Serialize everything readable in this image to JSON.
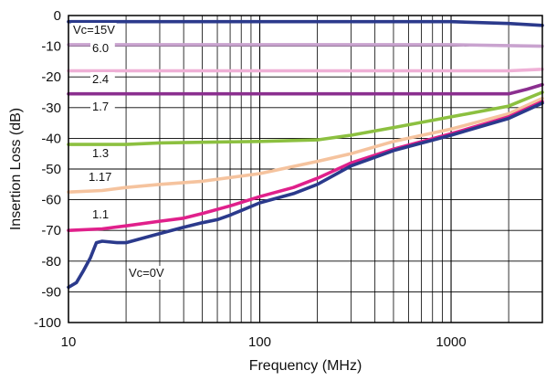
{
  "chart_data": {
    "type": "line",
    "title": "",
    "xlabel": "Frequency (MHz)",
    "ylabel": "Insertion Loss (dB)",
    "xscale": "log",
    "xlim": [
      10,
      3000
    ],
    "ylim": [
      -100,
      0
    ],
    "grid": true,
    "x_ticks": [
      "10",
      "100",
      "1000"
    ],
    "y_ticks": [
      "0",
      "-10",
      "-20",
      "-30",
      "-40",
      "-50",
      "-60",
      "-70",
      "-80",
      "-90",
      "-100"
    ],
    "series": [
      {
        "name": "Vc=15V",
        "color": "#2b3a8c",
        "points": [
          [
            10,
            -2
          ],
          [
            100,
            -2
          ],
          [
            1000,
            -2
          ],
          [
            2000,
            -2.6
          ],
          [
            3000,
            -3.2
          ]
        ]
      },
      {
        "name": "6.0",
        "color": "#c9a3cf",
        "points": [
          [
            10,
            -9.5
          ],
          [
            100,
            -9.5
          ],
          [
            1000,
            -9.5
          ],
          [
            2000,
            -9.8
          ],
          [
            3000,
            -10
          ]
        ]
      },
      {
        "name": "2.4",
        "color": "#efb0d6",
        "points": [
          [
            10,
            -18
          ],
          [
            100,
            -18
          ],
          [
            1000,
            -18
          ],
          [
            2000,
            -18
          ],
          [
            3000,
            -17.5
          ]
        ]
      },
      {
        "name": "1.7",
        "color": "#8b2f8f",
        "points": [
          [
            10,
            -25.5
          ],
          [
            100,
            -25.5
          ],
          [
            1000,
            -25.5
          ],
          [
            2000,
            -25.5
          ],
          [
            2500,
            -24
          ],
          [
            3000,
            -22.5
          ]
        ]
      },
      {
        "name": "1.3",
        "color": "#8cc040",
        "points": [
          [
            10,
            -42
          ],
          [
            20,
            -42
          ],
          [
            30,
            -41.5
          ],
          [
            100,
            -41
          ],
          [
            200,
            -40.5
          ],
          [
            300,
            -39
          ],
          [
            500,
            -36.5
          ],
          [
            1000,
            -33
          ],
          [
            2000,
            -29.5
          ],
          [
            3000,
            -25
          ]
        ]
      },
      {
        "name": "1.17",
        "color": "#f5c39e",
        "points": [
          [
            10,
            -57.5
          ],
          [
            15,
            -57
          ],
          [
            20,
            -56
          ],
          [
            30,
            -55
          ],
          [
            50,
            -54
          ],
          [
            100,
            -51.5
          ],
          [
            200,
            -47.5
          ],
          [
            300,
            -45
          ],
          [
            500,
            -41
          ],
          [
            1000,
            -37
          ],
          [
            2000,
            -32
          ],
          [
            3000,
            -27
          ]
        ]
      },
      {
        "name": "1.1",
        "color": "#e0208b",
        "points": [
          [
            10,
            -70
          ],
          [
            15,
            -69.5
          ],
          [
            20,
            -68.5
          ],
          [
            30,
            -67
          ],
          [
            40,
            -66
          ],
          [
            50,
            -64.5
          ],
          [
            70,
            -62
          ],
          [
            100,
            -59
          ],
          [
            150,
            -56
          ],
          [
            200,
            -53
          ],
          [
            300,
            -48
          ],
          [
            500,
            -43.5
          ],
          [
            1000,
            -38.5
          ],
          [
            2000,
            -33
          ],
          [
            3000,
            -28
          ]
        ]
      },
      {
        "name": "Vc=0V",
        "color": "#2b3a8c",
        "points": [
          [
            10,
            -88.5
          ],
          [
            11,
            -87
          ],
          [
            12,
            -83
          ],
          [
            13,
            -79
          ],
          [
            14,
            -74
          ],
          [
            15,
            -73.5
          ],
          [
            18,
            -74
          ],
          [
            20,
            -74
          ],
          [
            30,
            -71
          ],
          [
            40,
            -69
          ],
          [
            50,
            -67.5
          ],
          [
            60,
            -66.5
          ],
          [
            70,
            -65
          ],
          [
            80,
            -63.5
          ],
          [
            100,
            -61
          ],
          [
            150,
            -58
          ],
          [
            200,
            -55
          ],
          [
            300,
            -49
          ],
          [
            500,
            -44
          ],
          [
            1000,
            -39
          ],
          [
            2000,
            -33.5
          ],
          [
            3000,
            -28.5
          ]
        ]
      }
    ],
    "series_labels": [
      "Vc=15V",
      "6.0",
      "2.4",
      "1.7",
      "1.3",
      "1.17",
      "1.1",
      "Vc=0V"
    ]
  }
}
